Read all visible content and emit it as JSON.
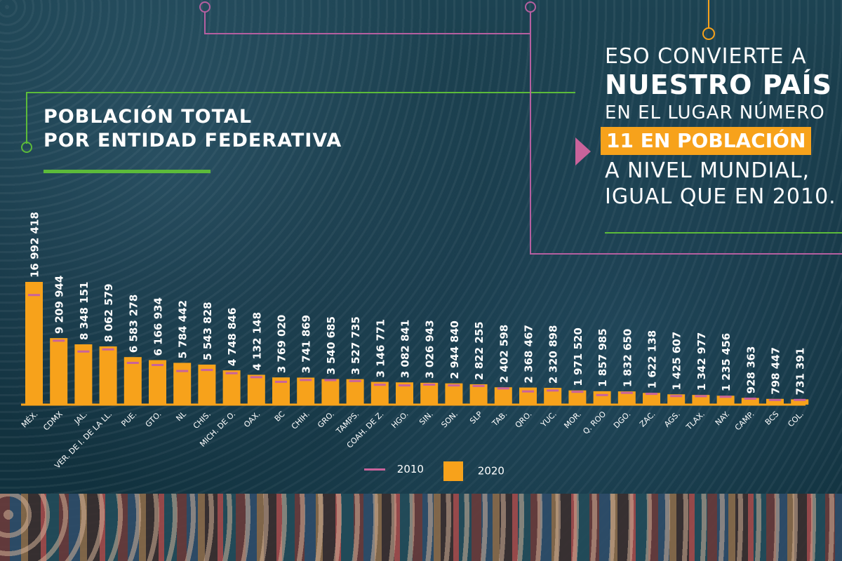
{
  "title": {
    "line1": "POBLACIÓN TOTAL",
    "line2": "POR ENTIDAD FEDERATIVA"
  },
  "callout": {
    "line1": "ESO CONVIERTE A",
    "line2": "NUESTRO PAÍS",
    "line3": "EN EL LUGAR NÚMERO",
    "highlight": "11 EN POBLACIÓN",
    "line4": "A NIVEL MUNDIAL,",
    "line5": "IGUAL QUE EN 2010."
  },
  "colors": {
    "bar_2020": "#f7a21b",
    "marker_2010": "#c9639b",
    "accent_green": "#5cbb3a",
    "accent_purple": "#b55fa0",
    "accent_orange": "#f7a21b"
  },
  "chart_data": {
    "type": "bar",
    "categories": [
      "MÉX.",
      "CDMX",
      "JAL.",
      "VER. DE I. DE LA LL.",
      "PUE.",
      "GTO.",
      "NL",
      "CHIS.",
      "MICH. DE O.",
      "OAX.",
      "BC",
      "CHIH.",
      "GRO.",
      "TAMPS.",
      "COAH. DE Z.",
      "HGO.",
      "SIN.",
      "SON.",
      "SLP",
      "TAB.",
      "QRO.",
      "YUC.",
      "MOR.",
      "Q. ROO",
      "DGO.",
      "ZAC.",
      "AGS.",
      "TLAX.",
      "NAY.",
      "CAMP.",
      "BCS",
      "COL."
    ],
    "series": [
      {
        "name": "2020",
        "values": [
          16992418,
          9209944,
          8348151,
          8062579,
          6583278,
          6166934,
          5784442,
          5543828,
          4748846,
          4132148,
          3769020,
          3741869,
          3540685,
          3527735,
          3146771,
          3082841,
          3026943,
          2944840,
          2822255,
          2402598,
          2368467,
          2320898,
          1971520,
          1857985,
          1832650,
          1622138,
          1425607,
          1342977,
          1235456,
          928363,
          798447,
          731391
        ],
        "labels": [
          "16 992 418",
          "9 209 944",
          "8 348 151",
          "8 062 579",
          "6 583 278",
          "6 166 934",
          "5 784 442",
          "5 543 828",
          "4 748 846",
          "4 132 148",
          "3 769 020",
          "3 741 869",
          "3 540 685",
          "3 527 735",
          "3 146 771",
          "3 082 841",
          "3 026 943",
          "2 944 840",
          "2 822 255",
          "2 402 598",
          "2 368 467",
          "2 320 898",
          "1 971 520",
          "1 857 985",
          "1 832 650",
          "1 622 138",
          "1 425 607",
          "1 342 977",
          "1 235 456",
          "928 363",
          "798 447",
          "731 391"
        ]
      },
      {
        "name": "2010",
        "values": [
          15175862,
          8851080,
          7350682,
          7643194,
          5779829,
          5486372,
          4653458,
          4796580,
          4351037,
          3801962,
          3155070,
          3406465,
          3388768,
          3268554,
          2748391,
          2665018,
          2767761,
          2662480,
          2585518,
          2238603,
          1827937,
          1955577,
          1777227,
          1325578,
          1632934,
          1490668,
          1184996,
          1169936,
          1084979,
          822441,
          637026,
          650555
        ]
      }
    ],
    "legend": [
      "2010",
      "2020"
    ],
    "legend_position": "bottom-right",
    "ylim": [
      0,
      17500000
    ],
    "grid": false
  }
}
